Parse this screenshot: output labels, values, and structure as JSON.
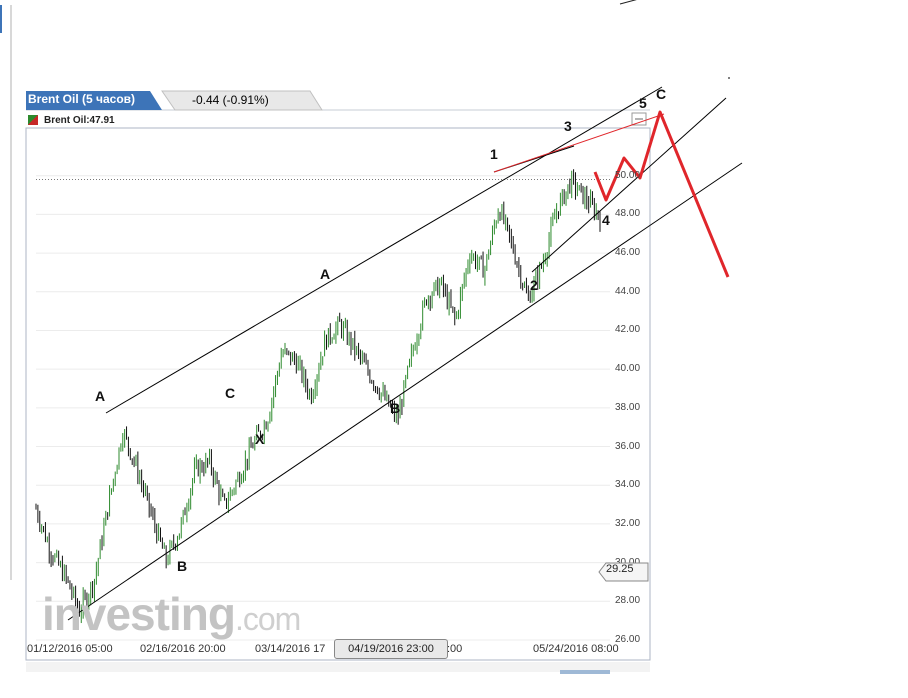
{
  "header": {
    "title": "Brent Oil (5 часов)",
    "change": "-0.44 (-0.91%)",
    "legend": "Brent Oil:47.91"
  },
  "logo": {
    "text": "investing",
    "domain": ".com"
  },
  "cursor": {
    "x_label": "04/19/2016 23:00",
    "price_label": "29.25"
  },
  "colors": {
    "up": "#2d8a2d",
    "down": "#111111",
    "forecast": "#e0262b",
    "channel": "#000000",
    "tab": "#3d74b8"
  },
  "chart_data": {
    "type": "line",
    "title": "Brent Oil (5 часов)",
    "ylim": [
      26,
      52
    ],
    "y_ticks": [
      "26.00",
      "28.00",
      "30.00",
      "32.00",
      "34.00",
      "36.00",
      "38.00",
      "40.00",
      "42.00",
      "44.00",
      "46.00",
      "48.00",
      "50.00"
    ],
    "x_ticks": [
      "01/12/2016 05:00",
      "02/16/2016 20:00",
      "03/14/2016 17",
      ":00",
      "05/24/2016 08:00"
    ],
    "last_price": 47.91,
    "grid": true,
    "series": [
      {
        "values": [
          32.8,
          30.6,
          29.3,
          27.5,
          29.0,
          33.0,
          36.8,
          34.8,
          32.4,
          30.1,
          31.8,
          34.8,
          35.2,
          32.9,
          34.4,
          36.1,
          37.4,
          40.9,
          40.4,
          38.6,
          41.5,
          42.3,
          41.1,
          39.8,
          38.6,
          37.4,
          40.8,
          43.7,
          44.4,
          42.5,
          46.0,
          45.1,
          48.4,
          46.2,
          43.6,
          45.4,
          48.2,
          49.7,
          48.8,
          47.9
        ]
      }
    ],
    "annotations": [
      "A",
      "B",
      "C",
      "X",
      "A",
      "B",
      "1",
      "2",
      "3",
      "4",
      "5",
      "C"
    ]
  }
}
